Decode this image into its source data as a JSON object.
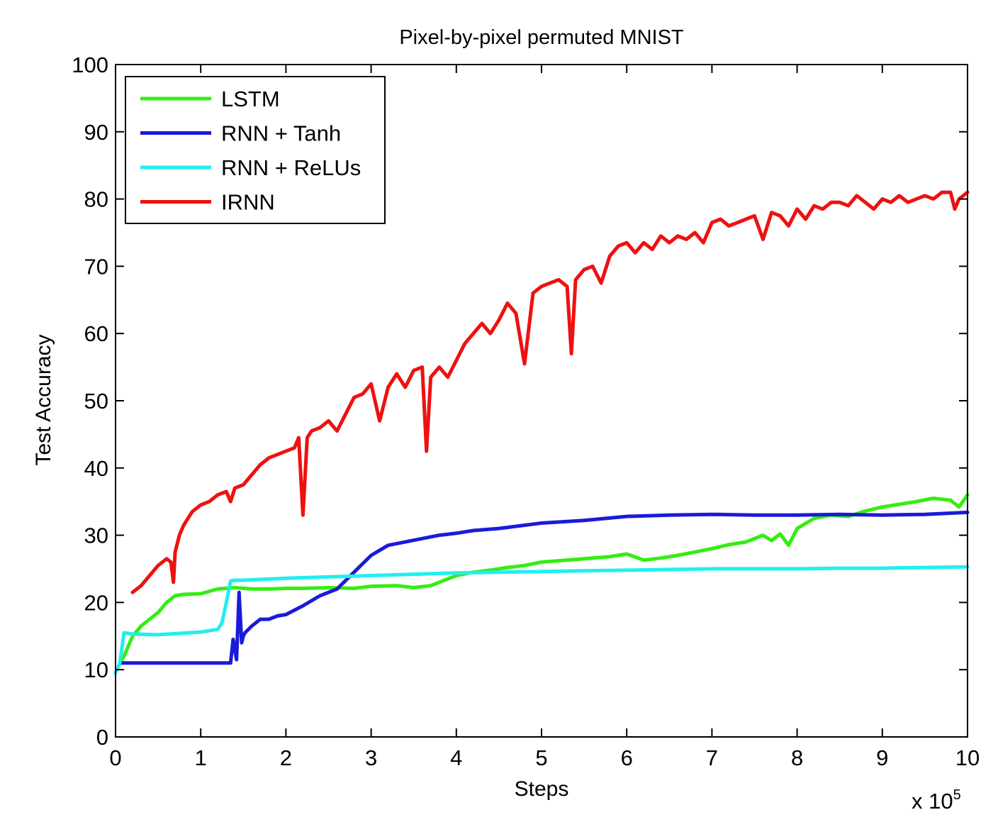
{
  "chart_data": {
    "type": "line",
    "title": "Pixel-by-pixel permuted MNIST",
    "xlabel": "Steps",
    "ylabel": "Test Accuracy",
    "x_multiplier_base": "x 10",
    "x_multiplier_exp": "5",
    "xlim": [
      0,
      10
    ],
    "ylim": [
      0,
      100
    ],
    "xticks": [
      "0",
      "1",
      "2",
      "3",
      "4",
      "5",
      "6",
      "7",
      "8",
      "9",
      "10"
    ],
    "yticks": [
      "0",
      "10",
      "20",
      "30",
      "40",
      "50",
      "60",
      "70",
      "80",
      "90",
      "100"
    ],
    "grid": false,
    "legend_position": "top-left",
    "series": [
      {
        "name": "LSTM",
        "color": "#33ee11",
        "x": [
          0.05,
          0.1,
          0.2,
          0.3,
          0.4,
          0.5,
          0.6,
          0.7,
          0.8,
          1.0,
          1.2,
          1.4,
          1.6,
          1.8,
          2.0,
          2.2,
          2.5,
          2.8,
          3.0,
          3.3,
          3.5,
          3.7,
          3.9,
          4.0,
          4.2,
          4.4,
          4.6,
          4.8,
          5.0,
          5.2,
          5.4,
          5.6,
          5.8,
          6.0,
          6.2,
          6.4,
          6.6,
          6.8,
          7.0,
          7.2,
          7.4,
          7.6,
          7.7,
          7.8,
          7.9,
          8.0,
          8.2,
          8.4,
          8.6,
          8.8,
          9.0,
          9.2,
          9.4,
          9.6,
          9.8,
          9.9,
          10.0
        ],
        "y": [
          11,
          12,
          15,
          16.5,
          17.5,
          18.5,
          20,
          21,
          21.2,
          21.3,
          22,
          22.2,
          22,
          22,
          22.1,
          22.1,
          22.2,
          22.1,
          22.4,
          22.5,
          22.2,
          22.5,
          23.5,
          24,
          24.5,
          24.8,
          25.2,
          25.5,
          26,
          26.2,
          26.4,
          26.6,
          26.8,
          27.2,
          26.3,
          26.6,
          27,
          27.5,
          28,
          28.6,
          29,
          30,
          29.2,
          30.2,
          28.5,
          31,
          32.5,
          33,
          32.8,
          33.6,
          34.2,
          34.6,
          35,
          35.5,
          35.2,
          34.2,
          36
        ]
      },
      {
        "name": "RNN + Tanh",
        "color": "#1a1adb",
        "x": [
          0.05,
          0.1,
          0.5,
          1.0,
          1.3,
          1.35,
          1.38,
          1.42,
          1.45,
          1.48,
          1.5,
          1.52,
          1.6,
          1.7,
          1.8,
          1.9,
          2.0,
          2.2,
          2.4,
          2.6,
          2.8,
          3.0,
          3.2,
          3.4,
          3.6,
          3.8,
          4.0,
          4.2,
          4.5,
          5.0,
          5.5,
          6.0,
          6.5,
          7.0,
          7.5,
          8.0,
          8.5,
          9.0,
          9.5,
          10.0
        ],
        "y": [
          11,
          11,
          11,
          11,
          11,
          11,
          14.5,
          11.5,
          21.5,
          14,
          15,
          15.5,
          16.5,
          17.5,
          17.5,
          18,
          18.2,
          19.5,
          21,
          22,
          24.5,
          27,
          28.5,
          29,
          29.5,
          30,
          30.3,
          30.7,
          31,
          31.8,
          32.2,
          32.8,
          33,
          33.1,
          33,
          33,
          33.1,
          33,
          33.1,
          33.4
        ]
      },
      {
        "name": "RNN + ReLUs",
        "color": "#22eef0",
        "x": [
          0.0,
          0.05,
          0.1,
          0.2,
          0.5,
          1.0,
          1.2,
          1.25,
          1.3,
          1.35,
          1.4,
          1.5,
          2.0,
          2.5,
          3.0,
          3.5,
          4.0,
          4.5,
          5.0,
          5.5,
          6.0,
          6.5,
          7.0,
          7.5,
          8.0,
          8.5,
          9.0,
          9.5,
          10.0
        ],
        "y": [
          9.5,
          11,
          15.5,
          15.3,
          15.2,
          15.6,
          16,
          17,
          20,
          23.2,
          23.3,
          23.3,
          23.6,
          23.8,
          24,
          24.2,
          24.4,
          24.5,
          24.6,
          24.7,
          24.8,
          24.9,
          25,
          25,
          25,
          25.1,
          25.1,
          25.2,
          25.3
        ]
      },
      {
        "name": "IRNN",
        "color": "#ee1111",
        "x": [
          0.2,
          0.3,
          0.4,
          0.5,
          0.6,
          0.65,
          0.68,
          0.7,
          0.75,
          0.8,
          0.9,
          1.0,
          1.1,
          1.2,
          1.3,
          1.35,
          1.4,
          1.5,
          1.6,
          1.7,
          1.8,
          1.9,
          2.0,
          2.1,
          2.15,
          2.2,
          2.25,
          2.3,
          2.4,
          2.5,
          2.6,
          2.7,
          2.8,
          2.9,
          3.0,
          3.1,
          3.2,
          3.3,
          3.4,
          3.5,
          3.6,
          3.65,
          3.7,
          3.8,
          3.9,
          4.0,
          4.1,
          4.2,
          4.3,
          4.4,
          4.5,
          4.6,
          4.7,
          4.8,
          4.9,
          5.0,
          5.1,
          5.2,
          5.3,
          5.35,
          5.4,
          5.5,
          5.6,
          5.7,
          5.8,
          5.9,
          6.0,
          6.1,
          6.2,
          6.3,
          6.4,
          6.5,
          6.6,
          6.7,
          6.8,
          6.9,
          7.0,
          7.1,
          7.2,
          7.3,
          7.4,
          7.5,
          7.6,
          7.7,
          7.8,
          7.9,
          8.0,
          8.1,
          8.2,
          8.3,
          8.4,
          8.5,
          8.6,
          8.7,
          8.8,
          8.9,
          9.0,
          9.1,
          9.2,
          9.3,
          9.4,
          9.5,
          9.6,
          9.7,
          9.8,
          9.85,
          9.9,
          10.0
        ],
        "y": [
          21.5,
          22.5,
          24,
          25.5,
          26.5,
          26,
          23,
          27.5,
          30,
          31.5,
          33.5,
          34.5,
          35,
          36,
          36.5,
          35,
          37,
          37.5,
          39,
          40.5,
          41.5,
          42,
          42.5,
          43,
          44.5,
          33,
          44.5,
          45.5,
          46,
          47,
          45.5,
          48,
          50.5,
          51,
          52.5,
          47,
          52,
          54,
          52,
          54.5,
          55,
          42.5,
          53.5,
          55,
          53.5,
          56,
          58.5,
          60,
          61.5,
          60,
          62,
          64.5,
          63,
          55.5,
          66,
          67,
          67.5,
          68,
          67,
          57,
          68,
          69.5,
          70,
          67.5,
          71.5,
          73,
          73.5,
          72,
          73.5,
          72.5,
          74.5,
          73.5,
          74.5,
          74,
          75,
          73.5,
          76.5,
          77,
          76,
          76.5,
          77,
          77.5,
          74,
          78,
          77.5,
          76,
          78.5,
          77,
          79,
          78.5,
          79.5,
          79.5,
          79,
          80.5,
          79.5,
          78.5,
          80,
          79.5,
          80.5,
          79.5,
          80,
          80.5,
          80,
          81,
          81,
          78.5,
          80,
          81
        ]
      }
    ]
  }
}
